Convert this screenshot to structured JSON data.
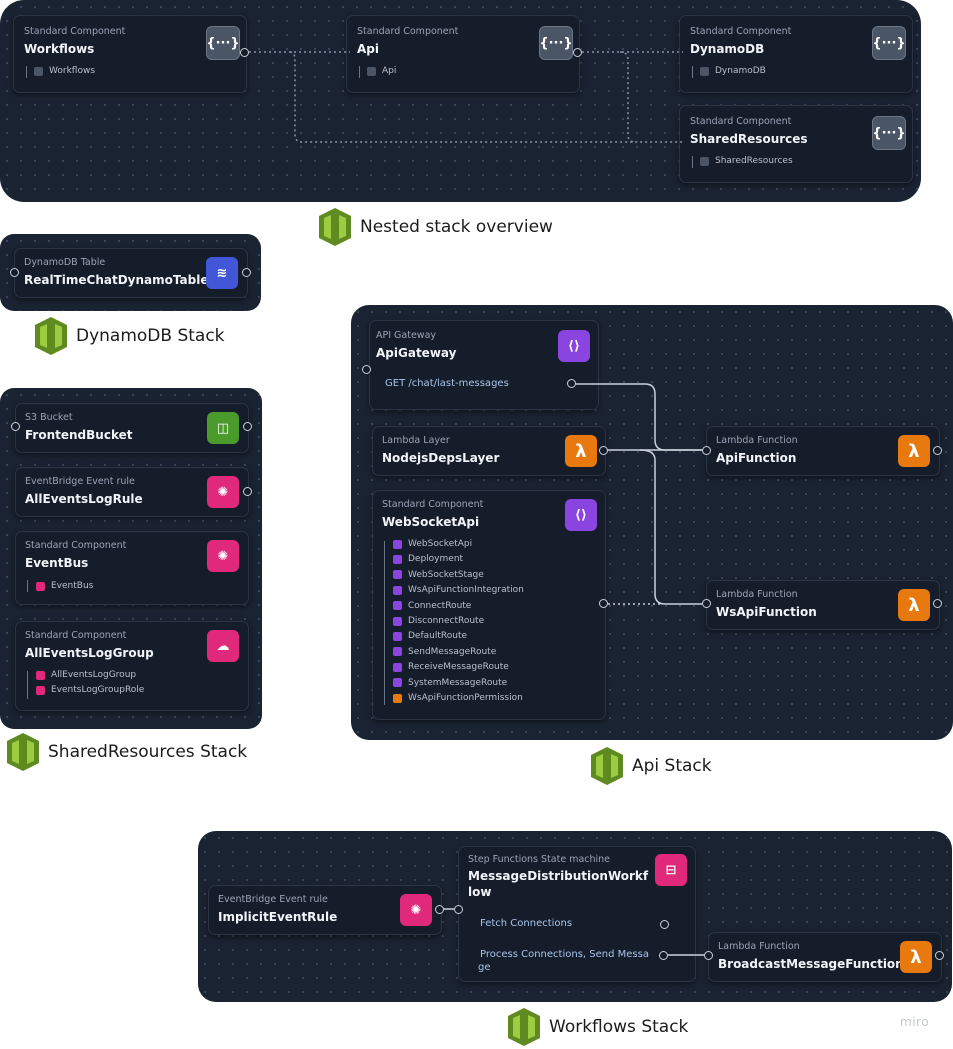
{
  "nested": {
    "caption": "Nested stack overview",
    "workflows": {
      "kind": "Standard Component",
      "name": "Workflows",
      "child": "Workflows"
    },
    "api": {
      "kind": "Standard Component",
      "name": "Api",
      "child": "Api"
    },
    "dynamodb": {
      "kind": "Standard Component",
      "name": "DynamoDB",
      "child": "DynamoDB"
    },
    "shared": {
      "kind": "Standard Component",
      "name": "SharedResources",
      "child": "SharedResources"
    }
  },
  "dynamo_stack": {
    "caption": "DynamoDB Stack",
    "table": {
      "kind": "DynamoDB Table",
      "name": "RealTimeChatDynamoTable"
    }
  },
  "shared_stack": {
    "caption": "SharedResources Stack",
    "bucket": {
      "kind": "S3 Bucket",
      "name": "FrontendBucket"
    },
    "rule": {
      "kind": "EventBridge Event rule",
      "name": "AllEventsLogRule"
    },
    "bus": {
      "kind": "Standard Component",
      "name": "EventBus",
      "children": [
        "EventBus"
      ]
    },
    "loggroup": {
      "kind": "Standard Component",
      "name": "AllEventsLogGroup",
      "children": [
        "AllEventsLogGroup",
        "EventsLogGroupRole"
      ]
    }
  },
  "api_stack": {
    "caption": "Api Stack",
    "gateway": {
      "kind": "API Gateway",
      "name": "ApiGateway",
      "route": "GET /chat/last-messages"
    },
    "layer": {
      "kind": "Lambda Layer",
      "name": "NodejsDepsLayer"
    },
    "ws": {
      "kind": "Standard Component",
      "name": "WebSocketApi",
      "children": [
        "WebSocketApi",
        "Deployment",
        "WebSocketStage",
        "WsApiFunctionIntegration",
        "ConnectRoute",
        "DisconnectRoute",
        "DefaultRoute",
        "SendMessageRoute",
        "ReceiveMessageRoute",
        "SystemMessageRoute",
        "WsApiFunctionPermission"
      ]
    },
    "apifn": {
      "kind": "Lambda Function",
      "name": "ApiFunction"
    },
    "wsfn": {
      "kind": "Lambda Function",
      "name": "WsApiFunction"
    }
  },
  "workflows_stack": {
    "caption": "Workflows Stack",
    "rule": {
      "kind": "EventBridge Event rule",
      "name": "ImplicitEventRule"
    },
    "sm": {
      "kind": "Step Functions State machine",
      "name_line1": "MessageDistributionWorkf",
      "name_line2": "low",
      "step1": "Fetch Connections",
      "step2_line1": "Process Connections, Send Messa",
      "step2_line2": "ge"
    },
    "fn": {
      "kind": "Lambda Function",
      "name": "BroadcastMessageFunction"
    }
  },
  "icons": {
    "component": "braces-icon",
    "lambda": "lambda-icon",
    "api": "api-gateway-icon",
    "eventbridge": "eventbridge-icon",
    "s3": "bucket-icon",
    "dynamodb": "dynamodb-icon",
    "stepfunctions": "state-machine-icon",
    "cloudformation": "cloudformation-icon"
  },
  "colors": {
    "panel": "#1a2332",
    "lambda": "#e8790f",
    "api": "#8a44e0",
    "eventbridge": "#e0297a",
    "s3": "#4a9a2c",
    "dynamodb": "#4257d8",
    "stack": "#6b8e23"
  },
  "watermark": "miro"
}
